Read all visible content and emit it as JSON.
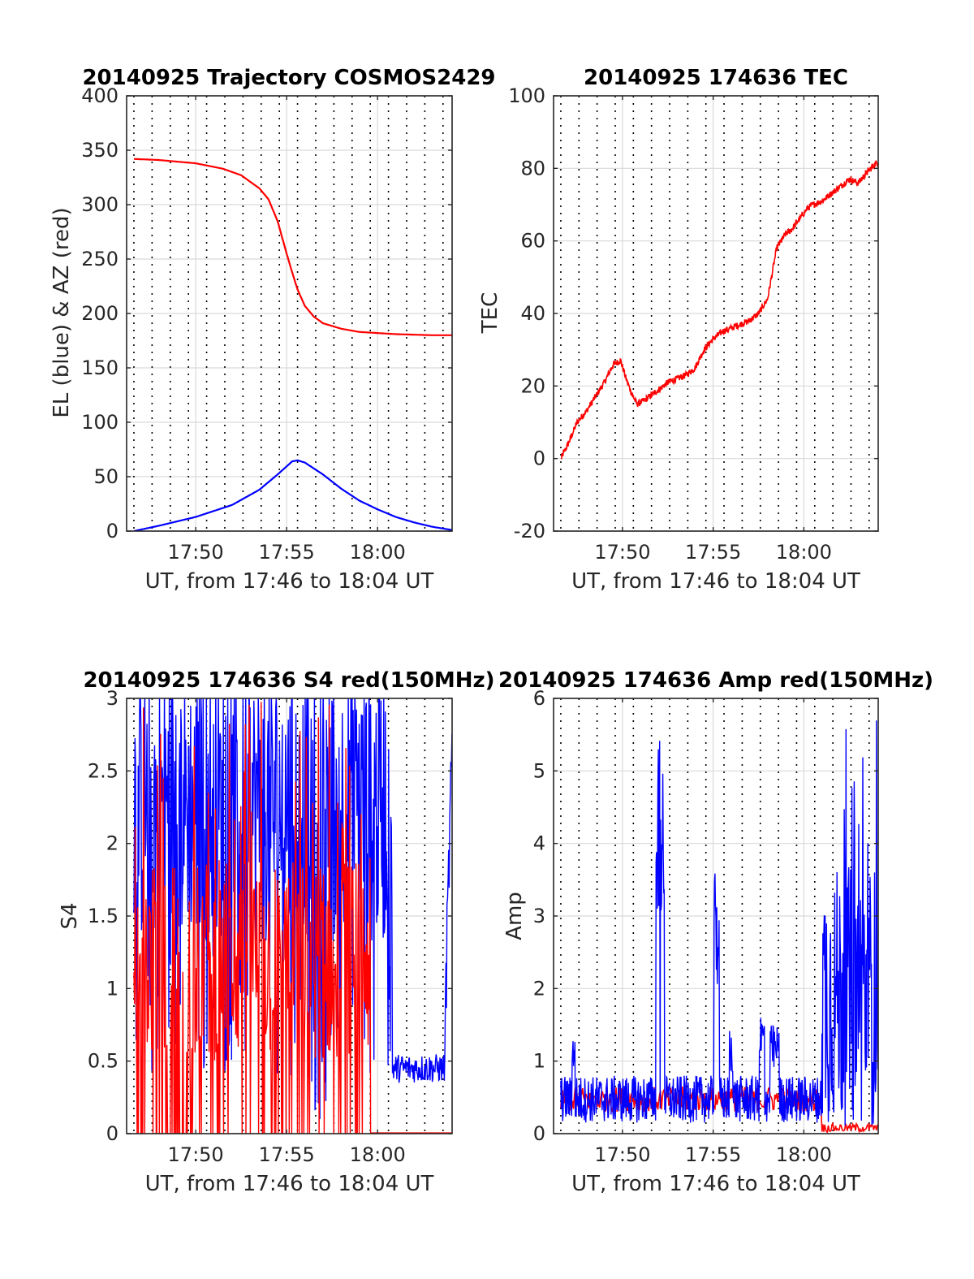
{
  "figure": {
    "colors": {
      "blue": "#0000ff",
      "red": "#ff0000",
      "grid": "#d9d9d9",
      "dots": "#000000",
      "axis": "#262626"
    }
  },
  "chart_data": [
    {
      "type": "line",
      "title": "20140925 Trajectory COSMOS2429",
      "xlabel": "UT, from 17:46 to 18:04 UT",
      "ylabel": "EL (blue) & AZ (red)",
      "x_tick_labels": [
        "17:50",
        "17:55",
        "18:00"
      ],
      "y_tick_labels": [
        "0",
        "50",
        "100",
        "150",
        "200",
        "250",
        "300",
        "350",
        "400"
      ],
      "x_unit": "minutes after 17:46 UT",
      "xlim": [
        0.2,
        18.1
      ],
      "ylim": [
        0,
        400
      ],
      "grid": true,
      "dotted_time_markers_every_min": 1,
      "series": [
        {
          "color": "#ff0000",
          "x": [
            0.6,
            2,
            4,
            5.5,
            6.5,
            7.5,
            8,
            8.5,
            9,
            9.3,
            9.6,
            10,
            10.5,
            11,
            12,
            13,
            14,
            15,
            16,
            17,
            18.1
          ],
          "y": [
            342,
            341,
            338,
            333,
            327,
            315,
            305,
            285,
            255,
            238,
            222,
            207,
            197,
            191,
            186,
            183,
            182,
            181,
            180.5,
            180,
            180
          ]
        },
        {
          "color": "#0000ff",
          "x": [
            0.6,
            2,
            4,
            6,
            7.5,
            8.5,
            9.3,
            9.6,
            10,
            11,
            12,
            13,
            14,
            15,
            16,
            17,
            18.1
          ],
          "y": [
            0,
            5,
            13,
            24,
            38,
            52,
            64,
            65,
            63,
            52,
            39,
            28,
            20,
            13,
            8,
            4,
            1
          ]
        }
      ]
    },
    {
      "type": "line",
      "title": "20140925 174636 TEC",
      "xlabel": "UT, from 17:46 to 18:04 UT",
      "ylabel": "TEC",
      "x_tick_labels": [
        "17:50",
        "17:55",
        "18:00"
      ],
      "y_tick_labels": [
        "-20",
        "0",
        "20",
        "40",
        "60",
        "80",
        "100"
      ],
      "xlim": [
        0.2,
        18.1
      ],
      "ylim": [
        -20,
        100
      ],
      "grid": true,
      "series": [
        {
          "color": "#ff0000",
          "x": [
            0.6,
            1,
            1.5,
            2,
            2.5,
            3,
            3.5,
            3.9,
            4.2,
            4.5,
            4.8,
            5.2,
            5.6,
            6,
            6.5,
            7,
            7.5,
            8,
            8.5,
            9,
            9.5,
            10,
            10.5,
            11,
            11.5,
            12,
            12.5,
            13,
            13.3,
            13.6,
            13.9,
            14.2,
            14.5,
            15,
            15.5,
            16,
            16.5,
            17,
            17.5,
            18.1
          ],
          "y": [
            0,
            4,
            10,
            13,
            17,
            21,
            26,
            27,
            22,
            18,
            15,
            16,
            17.5,
            19,
            21,
            22,
            23,
            25,
            30,
            33,
            35,
            36,
            37,
            38,
            40,
            44,
            58,
            62,
            63,
            65,
            67,
            69,
            70,
            71,
            73,
            75,
            77,
            76,
            79,
            82
          ]
        }
      ]
    },
    {
      "type": "line",
      "title": "20140925 174636 S4 red(150MHz)",
      "xlabel": "UT, from 17:46 to 18:04 UT",
      "ylabel": "S4",
      "x_tick_labels": [
        "17:50",
        "17:55",
        "18:00"
      ],
      "y_tick_labels": [
        "0",
        "0.5",
        "1",
        "1.5",
        "2",
        "2.5",
        "3"
      ],
      "xlim": [
        0.2,
        18.1
      ],
      "ylim": [
        0,
        3
      ],
      "grid": true,
      "series": [
        {
          "color": "#0000ff",
          "note_values": "dense noisy trace, mostly 1.5 to 3 from 17:46 to about 18:01, about 0.35 to 0.55 from 18:01 to 18:03:40, then rising to about 2.8"
        },
        {
          "color": "#ff0000",
          "note_values": "dense noisy trace between 0 and 3 from 17:46 to about 17:59:30, then near 0 until 18:04"
        }
      ]
    },
    {
      "type": "line",
      "title": "20140925 174636 Amp red(150MHz)",
      "xlabel": "UT, from 17:46 to 18:04 UT",
      "ylabel": "Amp",
      "x_tick_labels": [
        "17:50",
        "17:55",
        "18:00"
      ],
      "y_tick_labels": [
        "0",
        "1",
        "2",
        "3",
        "4",
        "5",
        "6"
      ],
      "xlim": [
        0.2,
        18.1
      ],
      "ylim": [
        0,
        6
      ],
      "grid": true,
      "series": [
        {
          "color": "#0000ff",
          "note_values": "noisy trace mostly 0.2 to 1.0, spikes to about 5.5 near 17:52, about 3.7 near 17:55:30, about 1.6 to 1.8 near 17:58, bursts to about 5.9 after 18:01"
        },
        {
          "color": "#ff0000",
          "note_values": "mostly hidden beneath the blue trace, visible near 0.7 around 17:52 and near 0.1 after 18:01"
        }
      ]
    }
  ]
}
